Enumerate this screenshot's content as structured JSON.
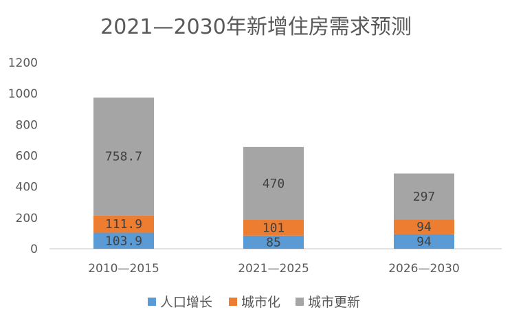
{
  "chart_data": {
    "type": "bar",
    "stacked": true,
    "title": "2021—2030年新增住房需求预测",
    "xlabel": "",
    "ylabel": "",
    "categories": [
      "2010—2015",
      "2021—2025",
      "2026—2030"
    ],
    "ylim": [
      0,
      1200
    ],
    "yticks": [
      0,
      200,
      400,
      600,
      800,
      1000,
      1200
    ],
    "grid": false,
    "legend": "bottom",
    "series": [
      {
        "name": "人口增长",
        "values": [
          103.9,
          85,
          94
        ],
        "labels": [
          "103.9",
          "85",
          "94"
        ],
        "color": "#5b9bd5"
      },
      {
        "name": "城市化",
        "values": [
          111.9,
          101,
          94
        ],
        "labels": [
          "111.9",
          "101",
          "94"
        ],
        "color": "#ed7d31"
      },
      {
        "name": "城市更新",
        "values": [
          758.7,
          470,
          297
        ],
        "labels": [
          "758.7",
          "470",
          "297"
        ],
        "color": "#a5a5a5"
      }
    ]
  }
}
